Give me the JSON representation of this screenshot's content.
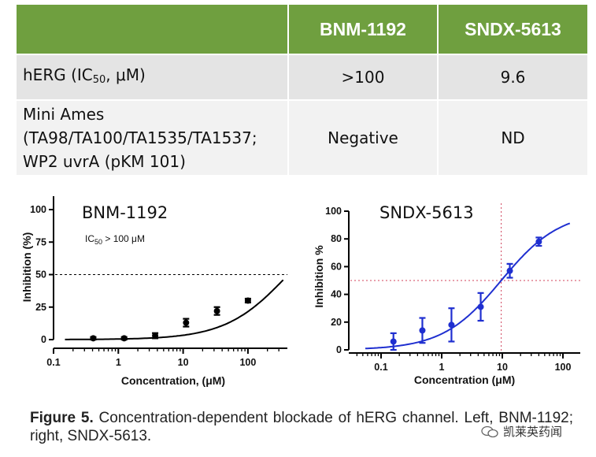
{
  "table": {
    "headers": [
      "",
      "BNM-1192",
      "SNDX-5613"
    ],
    "row_herg": {
      "label_main": "hERG (IC",
      "label_sub": "50",
      "label_end": ", μM)",
      "values": [
        ">100",
        "9.6"
      ]
    },
    "row_ames": {
      "label_lines": [
        "Mini Ames",
        "(TA98/TA100/TA1535/TA1537;",
        "WP2 uvrA (pKM 101)"
      ],
      "values": [
        "Negative",
        "ND"
      ]
    }
  },
  "chart_data": [
    {
      "type": "scatter",
      "title": "BNM-1192",
      "annotation": {
        "text_pre": "IC",
        "text_sub": "50",
        "text_post": " > 100 μM"
      },
      "xlabel": "Concentration, (μM)",
      "ylabel": "Inhibition (%)",
      "x_scale": "log",
      "xlim": [
        0.1,
        350
      ],
      "ylim": [
        0,
        100
      ],
      "x_ticks": [
        0.1,
        1,
        10,
        100
      ],
      "x_tick_labels": [
        "0.1",
        "1",
        "10",
        "100"
      ],
      "y_ticks": [
        0,
        25,
        50,
        75,
        100
      ],
      "y_tick_labels": [
        "0",
        "25",
        "50",
        "75",
        "100"
      ],
      "reference_line_y": 50,
      "color": "#000000",
      "points": [
        {
          "x": 0.41,
          "y": 1,
          "err": 1
        },
        {
          "x": 1.23,
          "y": 1,
          "err": 1
        },
        {
          "x": 3.7,
          "y": 3,
          "err": 2
        },
        {
          "x": 11.1,
          "y": 13,
          "err": 3
        },
        {
          "x": 33.3,
          "y": 22,
          "err": 3
        },
        {
          "x": 100,
          "y": 30,
          "err": 1.5
        }
      ],
      "fit_curve": {
        "x_start": 0.15,
        "x_end": 350,
        "ic50": 420,
        "hill": 0.9
      }
    },
    {
      "type": "scatter",
      "title": "SNDX-5613",
      "xlabel": "Concentration (μM)",
      "ylabel": "Inhibition %",
      "x_scale": "log",
      "xlim": [
        0.04,
        180
      ],
      "ylim": [
        0,
        100
      ],
      "x_ticks": [
        0.1,
        1,
        10,
        100
      ],
      "x_tick_labels": [
        "0.1",
        "1",
        "10",
        "100"
      ],
      "y_ticks": [
        0,
        20,
        40,
        60,
        80,
        100
      ],
      "y_tick_labels": [
        "0",
        "20",
        "40",
        "60",
        "80",
        "100"
      ],
      "reference_line_y": 50,
      "reference_line_x": 9.6,
      "color": "#1f2fd0",
      "points": [
        {
          "x": 0.16,
          "y": 6,
          "err": 6
        },
        {
          "x": 0.48,
          "y": 14,
          "err": 9
        },
        {
          "x": 1.45,
          "y": 18,
          "err": 12
        },
        {
          "x": 4.4,
          "y": 31,
          "err": 10
        },
        {
          "x": 13.3,
          "y": 57,
          "err": 5
        },
        {
          "x": 40,
          "y": 78,
          "err": 3
        }
      ],
      "fit_curve": {
        "x_start": 0.055,
        "x_end": 130,
        "ic50": 9.6,
        "hill": 0.9
      }
    }
  ],
  "caption": {
    "label": "Figure 5.",
    "text": " Concentration-dependent blockade of hERG channel. Left, BNM-1192; right, SNDX-5613."
  },
  "watermark": {
    "text": "凯莱英药闻"
  }
}
